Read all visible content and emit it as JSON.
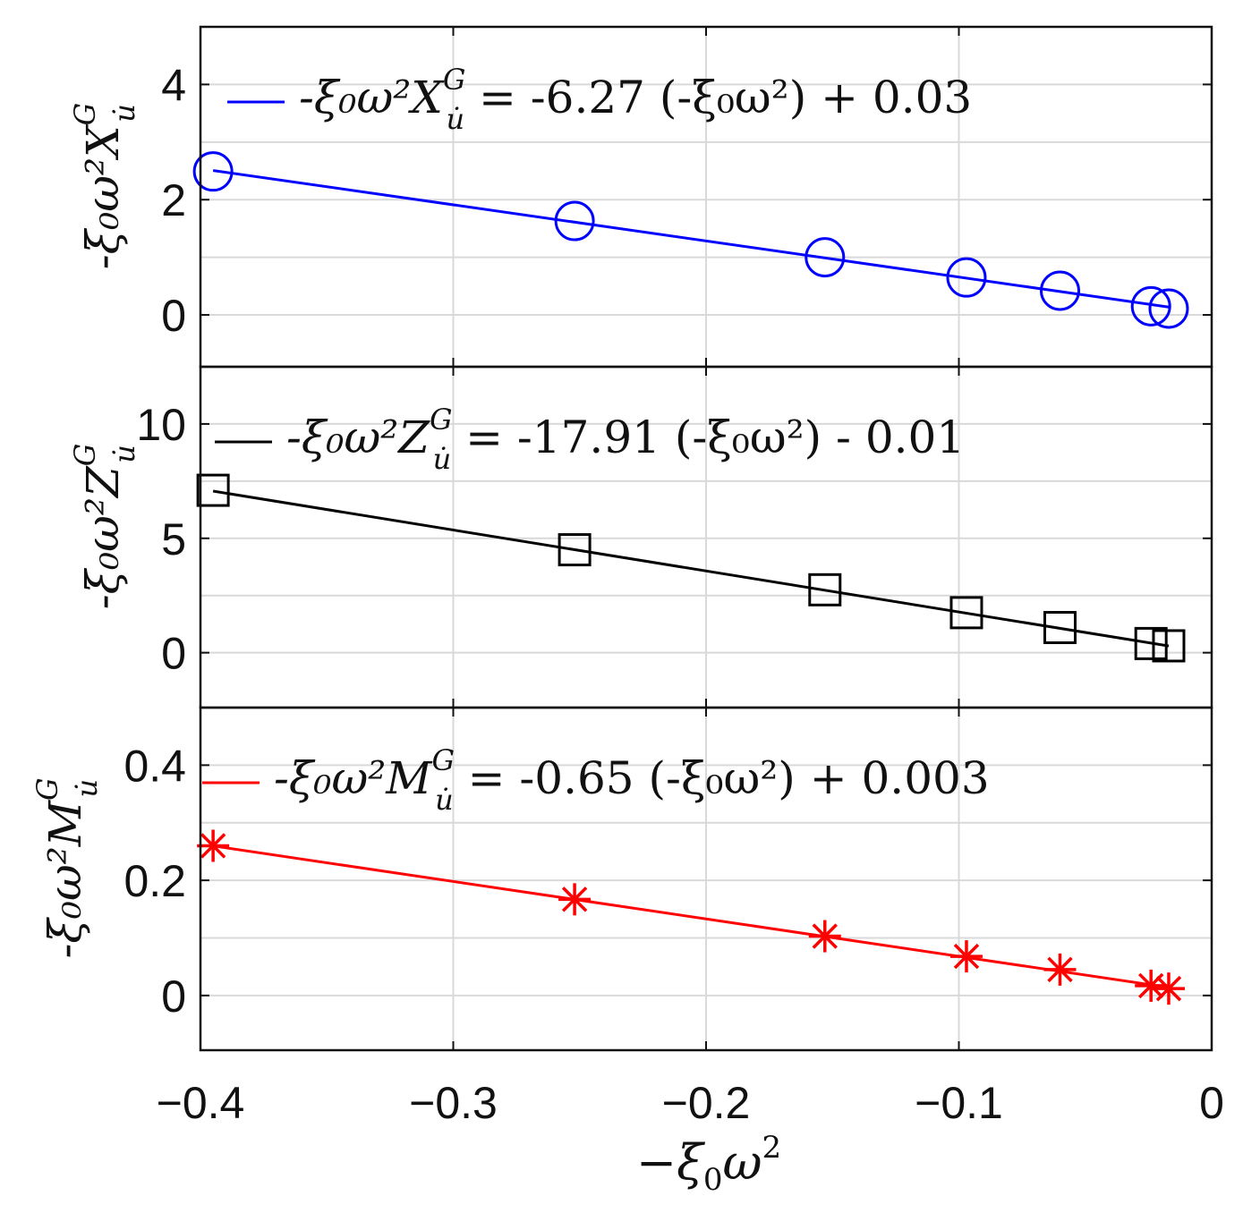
{
  "chart_data": [
    {
      "type": "scatter",
      "panel": "top",
      "title": "",
      "xlabel": "-ξ₀ω²",
      "ylabel": "-ξ₀ω²Xᵘ̇ᴳ",
      "ylabel_parts": {
        "prefix": "-ξ₀ω²",
        "symbol": "X",
        "subscript": "u̇",
        "superscript": "G"
      },
      "xlim": [
        -0.4,
        0
      ],
      "ylim": [
        -0.9,
        5.0
      ],
      "xticks": [
        -0.4,
        -0.3,
        -0.2,
        -0.1,
        0
      ],
      "yticks": [
        0,
        2,
        4
      ],
      "ytick_labels": [
        "0",
        "2",
        "4"
      ],
      "grid": true,
      "marker": "circle",
      "color": "#0000ff",
      "legend_placement": "top",
      "legend_text": {
        "lhs_prefix": "-ξ₀ω²",
        "lhs_symbol": "X",
        "lhs_subscript": "u̇",
        "lhs_superscript": "G",
        "equals": "=",
        "coef": "-6.27",
        "paren": "(-ξ₀ω²)",
        "sign": "+",
        "intercept": "0.03"
      },
      "fit": {
        "slope": -6.27,
        "intercept": 0.03,
        "x_range": [
          -0.395,
          -0.017
        ]
      },
      "x": [
        -0.395,
        -0.252,
        -0.153,
        -0.097,
        -0.06,
        -0.024,
        -0.017
      ],
      "y": [
        2.49,
        1.63,
        1.0,
        0.65,
        0.42,
        0.15,
        0.11
      ]
    },
    {
      "type": "scatter",
      "panel": "middle",
      "title": "",
      "xlabel": "-ξ₀ω²",
      "ylabel": "-ξ₀ω²Zᵘ̇ᴳ",
      "ylabel_parts": {
        "prefix": "-ξ₀ω²",
        "symbol": "Z",
        "subscript": "u̇",
        "superscript": "G"
      },
      "xlim": [
        -0.4,
        0
      ],
      "ylim": [
        -2.4,
        12.5
      ],
      "xticks": [
        -0.4,
        -0.3,
        -0.2,
        -0.1,
        0
      ],
      "yticks": [
        0,
        5,
        10
      ],
      "ytick_labels": [
        "0",
        "5",
        "10"
      ],
      "grid": true,
      "marker": "square",
      "color": "#000000",
      "legend_placement": "top",
      "legend_text": {
        "lhs_prefix": "-ξ₀ω²",
        "lhs_symbol": "Z",
        "lhs_subscript": "u̇",
        "lhs_superscript": "G",
        "equals": "=",
        "coef": "-17.91",
        "paren": "(-ξ₀ω²)",
        "sign": "-",
        "intercept": "0.01"
      },
      "fit": {
        "slope": -17.91,
        "intercept": -0.01,
        "x_range": [
          -0.395,
          -0.017
        ]
      },
      "x": [
        -0.395,
        -0.252,
        -0.153,
        -0.097,
        -0.06,
        -0.024,
        -0.017
      ],
      "y": [
        7.1,
        4.5,
        2.75,
        1.75,
        1.1,
        0.4,
        0.3
      ]
    },
    {
      "type": "scatter",
      "panel": "bottom",
      "title": "",
      "xlabel": "-ξ₀ω²",
      "ylabel": "-ξ₀ω²Mᵘ̇ᴳ",
      "ylabel_parts": {
        "prefix": "-ξ₀ω²",
        "symbol": "M",
        "subscript": "u̇",
        "superscript": "G"
      },
      "xlim": [
        -0.4,
        0
      ],
      "ylim": [
        -0.095,
        0.5
      ],
      "xticks": [
        -0.4,
        -0.3,
        -0.2,
        -0.1,
        0
      ],
      "xtick_labels": [
        "−0.4",
        "−0.3",
        "−0.2",
        "−0.1",
        "0"
      ],
      "yticks": [
        0,
        0.2,
        0.4
      ],
      "ytick_labels": [
        "0",
        "0.2",
        "0.4"
      ],
      "grid": true,
      "marker": "asterisk",
      "color": "#ff0000",
      "legend_placement": "top",
      "legend_text": {
        "lhs_prefix": "-ξ₀ω²",
        "lhs_symbol": "M",
        "lhs_subscript": "u̇",
        "lhs_superscript": "G",
        "equals": "=",
        "coef": "-0.65",
        "paren": "(-ξ₀ω²)",
        "sign": "+",
        "intercept": "0.003"
      },
      "fit": {
        "slope": -0.65,
        "intercept": 0.003,
        "x_range": [
          -0.395,
          -0.017
        ]
      },
      "x": [
        -0.395,
        -0.252,
        -0.153,
        -0.097,
        -0.06,
        -0.024,
        -0.017
      ],
      "y": [
        0.26,
        0.167,
        0.103,
        0.068,
        0.045,
        0.017,
        0.012
      ]
    }
  ],
  "x_axis_label": {
    "prefix": "−ξ",
    "sub": "0",
    "omega": "ω",
    "sup": "2"
  }
}
